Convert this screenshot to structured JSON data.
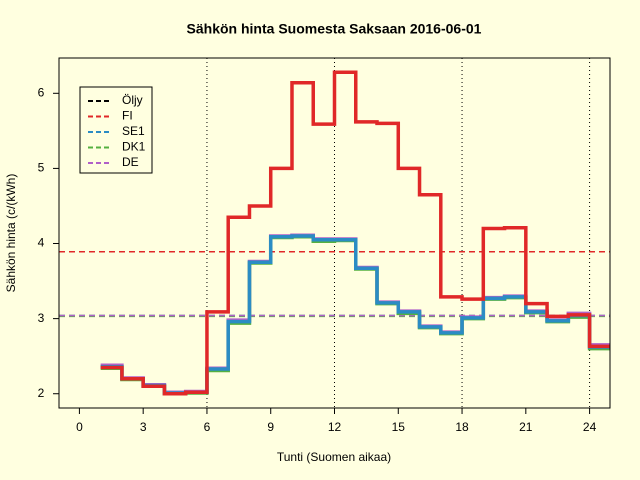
{
  "chart_data": {
    "type": "step",
    "title": "Sähkön hinta Suomesta Saksaan 2016-06-01",
    "xlabel": "Tunti (Suomen aikaa)",
    "ylabel": "Sähkön hinta (c/(kWh)",
    "x": [
      1,
      2,
      3,
      4,
      5,
      6,
      7,
      8,
      9,
      10,
      11,
      12,
      13,
      14,
      15,
      16,
      17,
      18,
      19,
      20,
      21,
      22,
      23,
      24
    ],
    "series": [
      {
        "name": "Öljy",
        "color": "#000000",
        "level": 3.04
      },
      {
        "name": "FI",
        "color": "#e02828",
        "level": 3.89,
        "values": [
          2.35,
          2.2,
          2.1,
          2.0,
          2.02,
          3.09,
          4.35,
          4.5,
          5.0,
          6.14,
          5.59,
          6.28,
          5.62,
          5.6,
          5.0,
          4.65,
          3.29,
          3.26,
          4.2,
          4.21,
          3.2,
          3.03,
          3.05,
          2.63
        ]
      },
      {
        "name": "SE1",
        "color": "#2b8cc4",
        "level": 3.04,
        "values": [
          2.36,
          2.2,
          2.11,
          2.01,
          2.02,
          2.33,
          2.96,
          3.75,
          4.09,
          4.1,
          4.05,
          4.05,
          3.67,
          3.21,
          3.09,
          2.89,
          2.81,
          3.01,
          3.27,
          3.29,
          3.09,
          2.97,
          3.04,
          2.62
        ]
      },
      {
        "name": "DK1",
        "color": "#55b040",
        "level": 3.03,
        "values": [
          2.34,
          2.19,
          2.1,
          2.0,
          2.01,
          2.31,
          2.94,
          3.74,
          4.08,
          4.09,
          4.03,
          4.04,
          3.66,
          3.2,
          3.07,
          2.88,
          2.8,
          3.0,
          3.26,
          3.28,
          3.08,
          2.96,
          3.02,
          2.6
        ]
      },
      {
        "name": "DE",
        "color": "#b060c8",
        "level": 3.04,
        "values": [
          2.38,
          2.21,
          2.12,
          2.02,
          2.03,
          2.34,
          2.98,
          3.76,
          4.1,
          4.11,
          4.06,
          4.06,
          3.68,
          3.22,
          3.1,
          2.9,
          2.82,
          3.02,
          3.28,
          3.3,
          3.1,
          2.98,
          3.07,
          2.65
        ]
      }
    ],
    "vlines": [
      6,
      12,
      18,
      24
    ],
    "xlim": [
      -0.96,
      24.96
    ],
    "ylim": [
      1.81,
      6.47
    ],
    "xticks": [
      0,
      3,
      6,
      9,
      12,
      15,
      18,
      21,
      24
    ],
    "yticks": [
      2,
      3,
      4,
      5,
      6
    ],
    "legend": "top-left"
  }
}
